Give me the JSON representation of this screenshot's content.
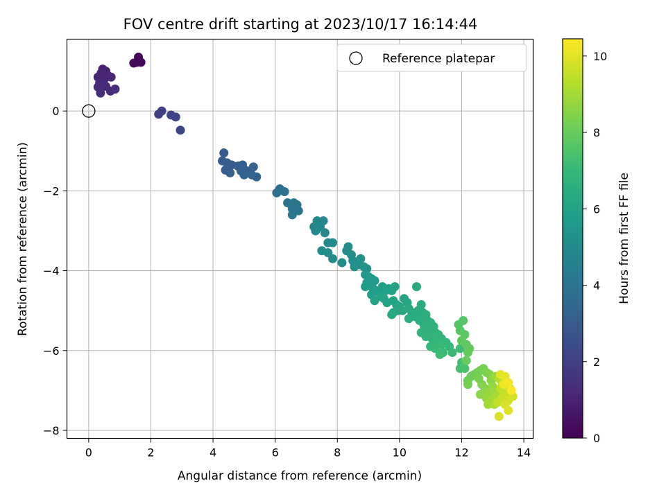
{
  "chart_data": {
    "type": "scatter",
    "title": "FOV centre drift starting at 2023/10/17 16:14:44",
    "xlabel": "Angular distance from reference (arcmin)",
    "ylabel": "Rotation from reference (arcmin)",
    "xlim": [
      -0.7,
      14.3
    ],
    "ylim": [
      -8.2,
      1.8
    ],
    "xticks": [
      0,
      2,
      4,
      6,
      8,
      10,
      12,
      14
    ],
    "yticks": [
      -8,
      -6,
      -4,
      -2,
      0
    ],
    "grid": true,
    "legend": {
      "position": "top-right",
      "entries": [
        {
          "label": "Reference platepar",
          "marker": "open-circle"
        }
      ]
    },
    "reference_point": {
      "x": 0,
      "y": 0
    },
    "colorbar": {
      "label": "Hours from first FF file",
      "range": [
        0,
        10.45
      ],
      "ticks": [
        0,
        2,
        4,
        6,
        8,
        10
      ],
      "colormap": "viridis",
      "colors": [
        "#440154",
        "#482878",
        "#3e4989",
        "#31688e",
        "#26828e",
        "#1f9e89",
        "#35b779",
        "#6ece58",
        "#b5de2b",
        "#fde725"
      ]
    },
    "points": [
      {
        "x": 1.6,
        "y": 1.35,
        "c": 0.05
      },
      {
        "x": 1.55,
        "y": 1.22,
        "c": 0.1
      },
      {
        "x": 1.68,
        "y": 1.22,
        "c": 0.15
      },
      {
        "x": 1.45,
        "y": 1.2,
        "c": 0.2
      },
      {
        "x": 0.45,
        "y": 1.05,
        "c": 0.9
      },
      {
        "x": 0.55,
        "y": 1.0,
        "c": 0.95
      },
      {
        "x": 0.3,
        "y": 0.85,
        "c": 1.0
      },
      {
        "x": 0.4,
        "y": 0.95,
        "c": 1.0
      },
      {
        "x": 0.6,
        "y": 0.9,
        "c": 1.05
      },
      {
        "x": 0.72,
        "y": 0.85,
        "c": 1.1
      },
      {
        "x": 0.5,
        "y": 0.8,
        "c": 1.1
      },
      {
        "x": 0.35,
        "y": 0.7,
        "c": 1.15
      },
      {
        "x": 0.45,
        "y": 0.65,
        "c": 1.2
      },
      {
        "x": 0.3,
        "y": 0.6,
        "c": 1.2
      },
      {
        "x": 0.55,
        "y": 0.62,
        "c": 1.25
      },
      {
        "x": 0.85,
        "y": 0.55,
        "c": 1.3
      },
      {
        "x": 0.7,
        "y": 0.5,
        "c": 1.3
      },
      {
        "x": 0.38,
        "y": 0.45,
        "c": 1.35
      },
      {
        "x": 2.25,
        "y": -0.08,
        "c": 2.0
      },
      {
        "x": 2.35,
        "y": 0.0,
        "c": 2.05
      },
      {
        "x": 2.65,
        "y": -0.1,
        "c": 2.1
      },
      {
        "x": 2.8,
        "y": -0.15,
        "c": 2.15
      },
      {
        "x": 2.95,
        "y": -0.48,
        "c": 2.2
      },
      {
        "x": 4.35,
        "y": -1.05,
        "c": 3.0
      },
      {
        "x": 4.3,
        "y": -1.25,
        "c": 3.0
      },
      {
        "x": 4.45,
        "y": -1.3,
        "c": 3.05
      },
      {
        "x": 4.6,
        "y": -1.35,
        "c": 3.05
      },
      {
        "x": 4.8,
        "y": -1.38,
        "c": 3.1
      },
      {
        "x": 4.95,
        "y": -1.35,
        "c": 3.1
      },
      {
        "x": 4.4,
        "y": -1.48,
        "c": 3.15
      },
      {
        "x": 4.55,
        "y": -1.55,
        "c": 3.15
      },
      {
        "x": 4.9,
        "y": -1.5,
        "c": 3.2
      },
      {
        "x": 5.1,
        "y": -1.5,
        "c": 3.2
      },
      {
        "x": 5.3,
        "y": -1.4,
        "c": 3.25
      },
      {
        "x": 5.25,
        "y": -1.6,
        "c": 3.25
      },
      {
        "x": 5.4,
        "y": -1.65,
        "c": 3.3
      },
      {
        "x": 5.0,
        "y": -1.6,
        "c": 3.3
      },
      {
        "x": 6.15,
        "y": -1.95,
        "c": 3.9
      },
      {
        "x": 6.05,
        "y": -2.05,
        "c": 3.9
      },
      {
        "x": 6.3,
        "y": -2.02,
        "c": 3.95
      },
      {
        "x": 6.4,
        "y": -2.3,
        "c": 4.0
      },
      {
        "x": 6.6,
        "y": -2.3,
        "c": 4.0
      },
      {
        "x": 6.7,
        "y": -2.35,
        "c": 4.05
      },
      {
        "x": 6.55,
        "y": -2.45,
        "c": 4.1
      },
      {
        "x": 6.75,
        "y": -2.5,
        "c": 4.1
      },
      {
        "x": 6.55,
        "y": -2.6,
        "c": 4.15
      },
      {
        "x": 7.35,
        "y": -2.75,
        "c": 4.8
      },
      {
        "x": 7.55,
        "y": -2.75,
        "c": 4.8
      },
      {
        "x": 7.25,
        "y": -2.9,
        "c": 4.85
      },
      {
        "x": 7.45,
        "y": -2.9,
        "c": 4.85
      },
      {
        "x": 7.3,
        "y": -3.0,
        "c": 4.9
      },
      {
        "x": 7.6,
        "y": -3.05,
        "c": 4.9
      },
      {
        "x": 7.7,
        "y": -3.3,
        "c": 4.95
      },
      {
        "x": 7.85,
        "y": -3.3,
        "c": 5.0
      },
      {
        "x": 7.5,
        "y": -3.5,
        "c": 5.0
      },
      {
        "x": 7.7,
        "y": -3.55,
        "c": 5.05
      },
      {
        "x": 7.85,
        "y": -3.7,
        "c": 5.05
      },
      {
        "x": 8.15,
        "y": -3.8,
        "c": 5.1
      },
      {
        "x": 8.35,
        "y": -3.4,
        "c": 5.1
      },
      {
        "x": 8.3,
        "y": -3.5,
        "c": 5.15
      },
      {
        "x": 8.45,
        "y": -3.6,
        "c": 5.15
      },
      {
        "x": 8.5,
        "y": -3.75,
        "c": 5.2
      },
      {
        "x": 8.6,
        "y": -3.8,
        "c": 5.2
      },
      {
        "x": 8.7,
        "y": -3.85,
        "c": 5.25
      },
      {
        "x": 8.75,
        "y": -3.7,
        "c": 5.25
      },
      {
        "x": 8.55,
        "y": -3.9,
        "c": 5.3
      },
      {
        "x": 8.85,
        "y": -3.9,
        "c": 5.3
      },
      {
        "x": 8.95,
        "y": -3.95,
        "c": 5.35
      },
      {
        "x": 8.9,
        "y": -4.1,
        "c": 5.6
      },
      {
        "x": 9.0,
        "y": -4.15,
        "c": 5.6
      },
      {
        "x": 9.1,
        "y": -4.2,
        "c": 5.65
      },
      {
        "x": 9.2,
        "y": -4.25,
        "c": 5.65
      },
      {
        "x": 8.95,
        "y": -4.3,
        "c": 5.7
      },
      {
        "x": 9.05,
        "y": -4.35,
        "c": 5.7
      },
      {
        "x": 8.9,
        "y": -4.4,
        "c": 5.75
      },
      {
        "x": 9.15,
        "y": -4.45,
        "c": 5.75
      },
      {
        "x": 9.25,
        "y": -4.5,
        "c": 5.8
      },
      {
        "x": 9.1,
        "y": -4.6,
        "c": 5.8
      },
      {
        "x": 9.35,
        "y": -4.55,
        "c": 5.85
      },
      {
        "x": 9.45,
        "y": -4.4,
        "c": 5.85
      },
      {
        "x": 9.55,
        "y": -4.5,
        "c": 5.9
      },
      {
        "x": 9.65,
        "y": -4.45,
        "c": 5.9
      },
      {
        "x": 9.75,
        "y": -4.5,
        "c": 5.95
      },
      {
        "x": 9.85,
        "y": -4.4,
        "c": 5.95
      },
      {
        "x": 9.2,
        "y": -4.75,
        "c": 6.0
      },
      {
        "x": 9.4,
        "y": -4.65,
        "c": 6.0
      },
      {
        "x": 9.5,
        "y": -4.7,
        "c": 6.05
      },
      {
        "x": 9.6,
        "y": -4.8,
        "c": 6.05
      },
      {
        "x": 9.8,
        "y": -4.75,
        "c": 6.1
      },
      {
        "x": 9.9,
        "y": -4.85,
        "c": 6.1
      },
      {
        "x": 10.0,
        "y": -4.9,
        "c": 6.15
      },
      {
        "x": 10.15,
        "y": -4.7,
        "c": 6.15
      },
      {
        "x": 10.25,
        "y": -4.8,
        "c": 6.2
      },
      {
        "x": 9.8,
        "y": -5.05,
        "c": 6.2
      },
      {
        "x": 9.95,
        "y": -5.0,
        "c": 6.25
      },
      {
        "x": 10.1,
        "y": -5.0,
        "c": 6.25
      },
      {
        "x": 10.3,
        "y": -4.95,
        "c": 6.3
      },
      {
        "x": 9.75,
        "y": -5.1,
        "c": 6.3
      },
      {
        "x": 10.55,
        "y": -4.4,
        "c": 6.35
      },
      {
        "x": 10.4,
        "y": -5.05,
        "c": 6.35
      },
      {
        "x": 10.6,
        "y": -5.0,
        "c": 6.4
      },
      {
        "x": 10.7,
        "y": -4.85,
        "c": 6.4
      },
      {
        "x": 10.75,
        "y": -5.05,
        "c": 6.45
      },
      {
        "x": 10.5,
        "y": -5.15,
        "c": 6.45
      },
      {
        "x": 10.3,
        "y": -5.2,
        "c": 6.5
      },
      {
        "x": 10.65,
        "y": -5.25,
        "c": 6.5
      },
      {
        "x": 10.85,
        "y": -5.1,
        "c": 6.55
      },
      {
        "x": 10.9,
        "y": -5.25,
        "c": 6.55
      },
      {
        "x": 10.75,
        "y": -5.3,
        "c": 6.6
      },
      {
        "x": 11.0,
        "y": -5.3,
        "c": 6.6
      },
      {
        "x": 10.8,
        "y": -5.4,
        "c": 6.65
      },
      {
        "x": 11.1,
        "y": -5.4,
        "c": 6.7
      },
      {
        "x": 10.7,
        "y": -5.55,
        "c": 6.7
      },
      {
        "x": 10.95,
        "y": -5.5,
        "c": 6.75
      },
      {
        "x": 11.15,
        "y": -5.55,
        "c": 6.75
      },
      {
        "x": 10.85,
        "y": -5.65,
        "c": 6.8
      },
      {
        "x": 11.05,
        "y": -5.7,
        "c": 6.8
      },
      {
        "x": 11.25,
        "y": -5.6,
        "c": 6.85
      },
      {
        "x": 11.35,
        "y": -5.7,
        "c": 6.85
      },
      {
        "x": 11.2,
        "y": -5.75,
        "c": 6.9
      },
      {
        "x": 11.5,
        "y": -5.8,
        "c": 6.9
      },
      {
        "x": 11.0,
        "y": -5.9,
        "c": 6.95
      },
      {
        "x": 11.35,
        "y": -5.85,
        "c": 7.0
      },
      {
        "x": 11.6,
        "y": -5.9,
        "c": 7.0
      },
      {
        "x": 11.15,
        "y": -5.95,
        "c": 7.05
      },
      {
        "x": 11.4,
        "y": -6.05,
        "c": 7.05
      },
      {
        "x": 11.7,
        "y": -6.05,
        "c": 7.1
      },
      {
        "x": 11.3,
        "y": -6.1,
        "c": 7.15
      },
      {
        "x": 11.95,
        "y": -5.95,
        "c": 7.2
      },
      {
        "x": 12.0,
        "y": -6.3,
        "c": 7.3
      },
      {
        "x": 11.95,
        "y": -6.45,
        "c": 7.35
      },
      {
        "x": 12.1,
        "y": -6.45,
        "c": 7.4
      },
      {
        "x": 11.9,
        "y": -5.35,
        "c": 7.6
      },
      {
        "x": 12.05,
        "y": -5.25,
        "c": 7.65
      },
      {
        "x": 11.95,
        "y": -5.5,
        "c": 7.7
      },
      {
        "x": 12.1,
        "y": -5.6,
        "c": 7.75
      },
      {
        "x": 12.0,
        "y": -5.75,
        "c": 7.8
      },
      {
        "x": 12.15,
        "y": -5.85,
        "c": 7.85
      },
      {
        "x": 12.25,
        "y": -5.95,
        "c": 7.9
      },
      {
        "x": 12.2,
        "y": -6.05,
        "c": 7.95
      },
      {
        "x": 12.15,
        "y": -6.25,
        "c": 8.0
      },
      {
        "x": 12.3,
        "y": -6.65,
        "c": 8.05
      },
      {
        "x": 12.2,
        "y": -6.75,
        "c": 8.1
      },
      {
        "x": 12.4,
        "y": -6.6,
        "c": 8.1
      },
      {
        "x": 12.5,
        "y": -6.55,
        "c": 8.15
      },
      {
        "x": 12.6,
        "y": -6.5,
        "c": 8.2
      },
      {
        "x": 12.7,
        "y": -6.45,
        "c": 8.25
      },
      {
        "x": 12.2,
        "y": -6.85,
        "c": 8.25
      },
      {
        "x": 12.55,
        "y": -6.7,
        "c": 8.3
      },
      {
        "x": 12.8,
        "y": -6.55,
        "c": 8.35
      },
      {
        "x": 12.65,
        "y": -6.85,
        "c": 8.4
      },
      {
        "x": 12.9,
        "y": -6.6,
        "c": 8.45
      },
      {
        "x": 12.75,
        "y": -6.95,
        "c": 8.5
      },
      {
        "x": 12.95,
        "y": -6.75,
        "c": 8.55
      },
      {
        "x": 12.6,
        "y": -7.1,
        "c": 8.6
      },
      {
        "x": 12.85,
        "y": -7.05,
        "c": 8.7
      },
      {
        "x": 13.0,
        "y": -6.9,
        "c": 8.75
      },
      {
        "x": 12.8,
        "y": -7.2,
        "c": 8.8
      },
      {
        "x": 13.1,
        "y": -6.65,
        "c": 8.85
      },
      {
        "x": 13.05,
        "y": -7.05,
        "c": 8.9
      },
      {
        "x": 12.95,
        "y": -7.25,
        "c": 8.95
      },
      {
        "x": 12.85,
        "y": -7.35,
        "c": 9.0
      },
      {
        "x": 13.15,
        "y": -7.15,
        "c": 9.05
      },
      {
        "x": 13.05,
        "y": -7.35,
        "c": 9.1
      },
      {
        "x": 13.2,
        "y": -6.7,
        "c": 9.2
      },
      {
        "x": 13.3,
        "y": -6.8,
        "c": 9.3
      },
      {
        "x": 13.25,
        "y": -6.95,
        "c": 9.4
      },
      {
        "x": 13.4,
        "y": -6.75,
        "c": 9.45
      },
      {
        "x": 13.15,
        "y": -7.3,
        "c": 9.5
      },
      {
        "x": 13.35,
        "y": -7.05,
        "c": 9.55
      },
      {
        "x": 13.45,
        "y": -7.1,
        "c": 9.6
      },
      {
        "x": 13.3,
        "y": -7.2,
        "c": 9.65
      },
      {
        "x": 13.55,
        "y": -6.95,
        "c": 9.7
      },
      {
        "x": 13.5,
        "y": -7.25,
        "c": 9.75
      },
      {
        "x": 13.65,
        "y": -7.15,
        "c": 9.8
      },
      {
        "x": 13.4,
        "y": -7.35,
        "c": 9.85
      },
      {
        "x": 13.2,
        "y": -7.65,
        "c": 9.9
      },
      {
        "x": 13.5,
        "y": -7.5,
        "c": 9.95
      },
      {
        "x": 13.25,
        "y": -6.6,
        "c": 10.0
      },
      {
        "x": 13.4,
        "y": -6.65,
        "c": 10.1
      },
      {
        "x": 13.35,
        "y": -6.85,
        "c": 10.2
      },
      {
        "x": 13.5,
        "y": -6.8,
        "c": 10.3
      },
      {
        "x": 13.6,
        "y": -7.0,
        "c": 10.4
      }
    ]
  }
}
